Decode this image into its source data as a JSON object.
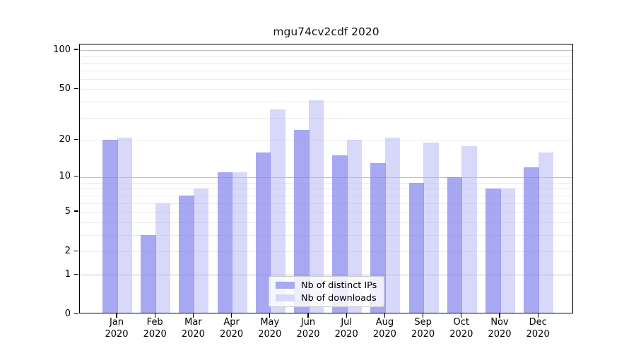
{
  "title": "mgu74cv2cdf 2020",
  "chart_data": {
    "type": "bar",
    "title": "mgu74cv2cdf 2020",
    "categories": [
      "Jan 2020",
      "Feb 2020",
      "Mar 2020",
      "Apr 2020",
      "May 2020",
      "Jun 2020",
      "Jul 2020",
      "Aug 2020",
      "Sep 2020",
      "Oct 2020",
      "Nov 2020",
      "Dec 2020"
    ],
    "x_tick_labels_line1": [
      "Jan",
      "Feb",
      "Mar",
      "Apr",
      "May",
      "Jun",
      "Jul",
      "Aug",
      "Sep",
      "Oct",
      "Nov",
      "Dec"
    ],
    "x_tick_labels_line2": [
      "2020",
      "2020",
      "2020",
      "2020",
      "2020",
      "2020",
      "2020",
      "2020",
      "2020",
      "2020",
      "2020",
      "2020"
    ],
    "series": [
      {
        "name": "Nb of distinct IPs",
        "color": "rgba(131,131,236,0.7)",
        "solid_color": "#a8a8f2",
        "values": [
          20,
          3,
          7,
          11,
          16,
          24,
          15,
          13,
          9,
          10,
          8,
          12
        ]
      },
      {
        "name": "Nb of downloads",
        "color": "rgba(177,177,245,0.5)",
        "solid_color": "#d8d8fa",
        "values": [
          21,
          6,
          8,
          11,
          35,
          41,
          20,
          21,
          19,
          18,
          8,
          16
        ]
      }
    ],
    "y_scale": "log1p",
    "ylim": [
      0,
      100
    ],
    "y_ticks": [
      0,
      1,
      2,
      5,
      10,
      20,
      50,
      100
    ],
    "y_major_gridlines": [
      1,
      10,
      100
    ],
    "y_minor_gridlines": [
      2,
      3,
      4,
      5,
      6,
      7,
      8,
      9,
      20,
      30,
      40,
      50,
      60,
      70,
      80,
      90
    ],
    "xlabel": "",
    "ylabel": "",
    "grid": true,
    "legend_position": "bottom-center"
  },
  "legend": {
    "items": [
      {
        "label": "Nb of distinct IPs"
      },
      {
        "label": "Nb of downloads"
      }
    ]
  }
}
